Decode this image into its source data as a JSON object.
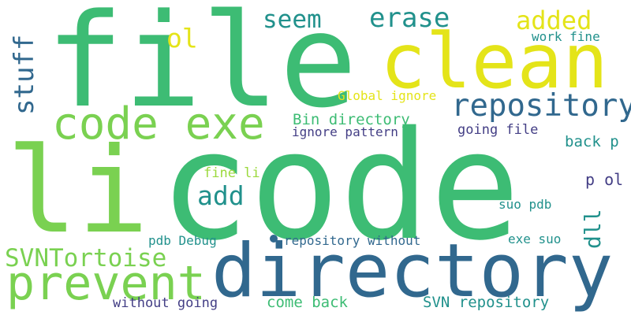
{
  "colors": {
    "background": "#ffffff",
    "dark_blue": "#31688e",
    "navy": "#433e85",
    "teal": "#21918c",
    "green": "#35b779",
    "emerald": "#3dbc74",
    "lime": "#7ad151",
    "yellow_green": "#9bd93c",
    "yellow": "#e4e419"
  },
  "words": [
    {
      "text": "code",
      "color": "#3dbc74"
    },
    {
      "text": "file",
      "color": "#3dbc74"
    },
    {
      "text": "li",
      "color": "#7ad151"
    },
    {
      "text": "clean",
      "color": "#e4e419"
    },
    {
      "text": "directory",
      "color": "#31688e"
    },
    {
      "text": "code exe",
      "color": "#7ad151"
    },
    {
      "text": "prevent",
      "color": "#7ad151"
    },
    {
      "text": "repository",
      "color": "#31688e"
    },
    {
      "text": "SVNTortoise",
      "color": "#7ad151"
    },
    {
      "text": "stuff",
      "color": "#31688e"
    },
    {
      "text": "seem",
      "color": "#21918c"
    },
    {
      "text": "erase",
      "color": "#21918c"
    },
    {
      "text": "added",
      "color": "#e4e419"
    },
    {
      "text": "ol",
      "color": "#e4e419"
    },
    {
      "text": "add",
      "color": "#21918c"
    },
    {
      "text": "dll",
      "color": "#21918c"
    },
    {
      "text": "work fine",
      "color": "#21918c"
    },
    {
      "text": "Bin directory",
      "color": "#3dbc74"
    },
    {
      "text": "Global ignore",
      "color": "#e4e419"
    },
    {
      "text": "ignore pattern",
      "color": "#433e85"
    },
    {
      "text": "going file",
      "color": "#433e85"
    },
    {
      "text": "back p",
      "color": "#21918c"
    },
    {
      "text": "fine li",
      "color": "#9bd93c"
    },
    {
      "text": "p ol",
      "color": "#433e85"
    },
    {
      "text": "suo pdb",
      "color": "#21918c"
    },
    {
      "text": "pdb Debug",
      "color": "#21918c"
    },
    {
      "text": "repository without",
      "color": "#31688e"
    },
    {
      "text": "exe suo",
      "color": "#21918c"
    },
    {
      "text": "come back",
      "color": "#3dbc74"
    },
    {
      "text": "SVN repository",
      "color": "#21918c"
    },
    {
      "text": "without going",
      "color": "#433e85"
    }
  ]
}
